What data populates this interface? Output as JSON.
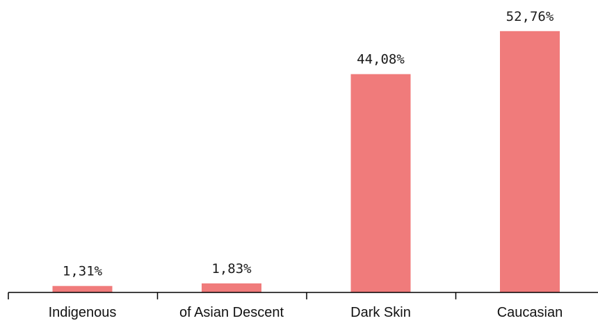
{
  "chart_data": {
    "type": "bar",
    "title": "",
    "xlabel": "",
    "ylabel": "",
    "categories": [
      "Indigenous",
      "of Asian Descent",
      "Dark Skin",
      "Caucasian"
    ],
    "values": [
      1.31,
      1.83,
      44.08,
      52.76
    ],
    "value_labels": [
      "1,31%",
      "1,83%",
      "44,08%",
      "52,76%"
    ],
    "ylim": [
      0,
      60
    ],
    "grid": false,
    "legend": "none",
    "bar_color": "#f07b7b",
    "axis_color": "#000000"
  }
}
